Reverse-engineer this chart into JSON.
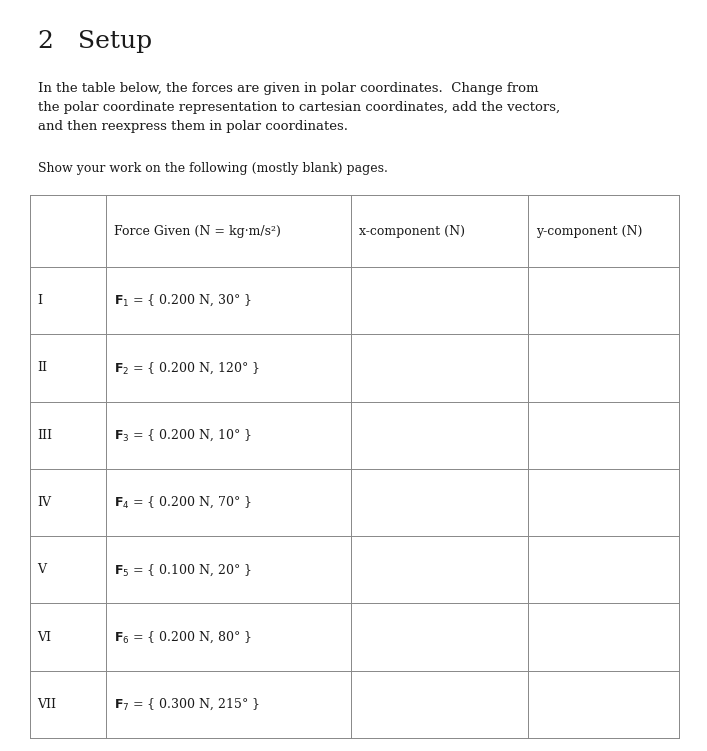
{
  "title": "2   Setup",
  "paragraph1": "In the table below, the forces are given in polar coordinates.  Change from\nthe polar coordinate representation to cartesian coordinates, add the vectors,\nand then reexpress them in polar coordinates.",
  "paragraph2": "Show your work on the following (mostly blank) pages.",
  "col_headers": [
    "",
    "Force Given (N = kg·m/s²)",
    "x-component (N)",
    "y-component (N)"
  ],
  "row_labels": [
    "I",
    "II",
    "III",
    "IV",
    "V",
    "VI",
    "VII"
  ],
  "force_texts": [
    [
      "F",
      "1",
      " = { 0.200 N, 30° }"
    ],
    [
      "F",
      "2",
      " = { 0.200 N, 120° }"
    ],
    [
      "F",
      "3",
      " = { 0.200 N, 10° }"
    ],
    [
      "F",
      "4",
      " = { 0.200 N, 70° }"
    ],
    [
      "F",
      "5",
      " = { 0.100 N, 20° }"
    ],
    [
      "F",
      "6",
      " = { 0.200 N, 80° }"
    ],
    [
      "F",
      "7",
      " = { 0.300 N, 215° }"
    ]
  ],
  "background_color": "#ffffff",
  "text_color": "#1a1a1a",
  "line_color": "#888888",
  "title_fontsize": 18,
  "header_fontsize": 9,
  "body_fontsize": 9,
  "para_fontsize": 9.5,
  "para2_fontsize": 9.0,
  "fig_width": 7.07,
  "fig_height": 7.51,
  "dpi": 100
}
